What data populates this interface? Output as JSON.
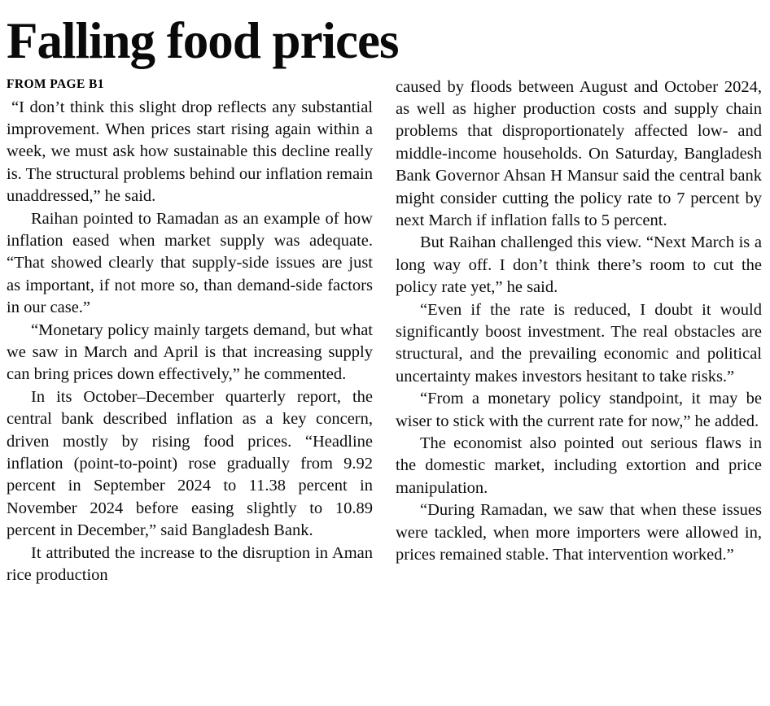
{
  "article": {
    "title": "Falling food prices",
    "continuation_label": "FROM PAGE B1",
    "left": {
      "paragraphs": [
        "“I don’t think this slight drop reflects any substantial improvement. When prices start rising again within a week, we must ask how sustainable this decline really is. The structural problems behind our inflation remain unaddressed,” he said.",
        "Raihan pointed to Ramadan as an example of how inflation eased when market supply was adequate. “That showed clearly that supply-side issues are just as important, if not more so, than demand-side factors in our case.”",
        "“Monetary policy mainly targets demand, but what we saw in March and April is that increasing supply can bring prices down effectively,” he commented.",
        "In its October–December quarterly report, the central bank described inflation as a key concern, driven mostly by rising food prices. “Headline inflation (point-to-point) rose gradually from 9.92 percent in September 2024 to 11.38 percent in November 2024 before easing slightly to 10.89 percent in December,” said Bangladesh Bank.",
        "It attributed the increase to the disruption in Aman rice production"
      ]
    },
    "right": {
      "paragraphs": [
        "caused by floods between August and October 2024, as well as higher production costs and supply chain problems that disproportionately affected low- and middle-income households. On Saturday, Bangladesh Bank Governor Ahsan H Mansur said the central bank might consider cutting the policy rate to 7 percent by next March if inflation falls to 5 percent.",
        "But Raihan challenged this view. “Next March is a long way off. I don’t think there’s room to cut the policy rate yet,” he said.",
        "“Even if the rate is reduced, I doubt it would significantly boost investment. The real obstacles are structural, and the prevailing economic and political uncertainty makes investors hesitant to take risks.”",
        "“From a monetary policy standpoint, it may be wiser to stick with the current rate for now,” he added.",
        "The economist also pointed out serious flaws in the domestic market, including extortion and price manipulation.",
        "“During Ramadan, we saw that when these issues were tackled, when more importers were allowed in, prices remained stable. That intervention worked.”"
      ]
    }
  }
}
